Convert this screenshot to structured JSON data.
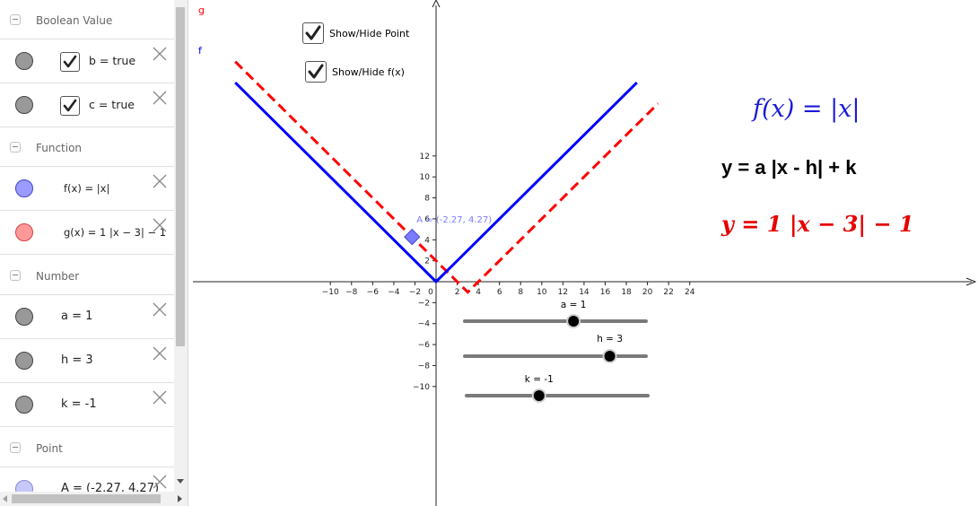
{
  "algebra": {
    "categories": {
      "boolean": "Boolean Value",
      "function": "Function",
      "number": "Number",
      "point": "Point"
    },
    "items": {
      "b": "b = true",
      "c": "c = true",
      "f": "f(x) = |x|",
      "g": "g(x) = 1 |x − 3| − 1",
      "a": "a = 1",
      "h": "h = 3",
      "k": "k = -1",
      "A": "A = (-2.27, 4.27)"
    }
  },
  "graphics": {
    "checkboxes": {
      "show_point": "Show/Hide Point",
      "show_fx": "Show/Hide f(x)"
    },
    "texts": {
      "fx": "f(x) = |x|",
      "general": "y = a |x - h| + k",
      "specific": "y = 1 |x − 3| − 1"
    },
    "sliders": [
      {
        "label": "a = 1",
        "value": 1,
        "min": -5,
        "max": 5
      },
      {
        "label": "h = 3",
        "value": 3,
        "min": -5,
        "max": 5
      },
      {
        "label": "k = -1",
        "value": -1,
        "min": -5,
        "max": 5
      }
    ],
    "point_label": "A = (-2.27, 4.27)",
    "curve_labels": {
      "f": "f",
      "g": "g"
    },
    "axes": {
      "x_ticks": [
        "−10",
        "−8",
        "−6",
        "−4",
        "−2",
        "0",
        "2",
        "4",
        "6",
        "8",
        "10",
        "12",
        "14",
        "16",
        "18",
        "20",
        "22",
        "24"
      ],
      "y_ticks": [
        "12",
        "10",
        "8",
        "6",
        "4",
        "2",
        "−2",
        "−4",
        "−6",
        "−8",
        "−10"
      ]
    },
    "colors": {
      "f": "#0000ff",
      "g": "#ff0000",
      "point": "#7b7bff"
    }
  }
}
